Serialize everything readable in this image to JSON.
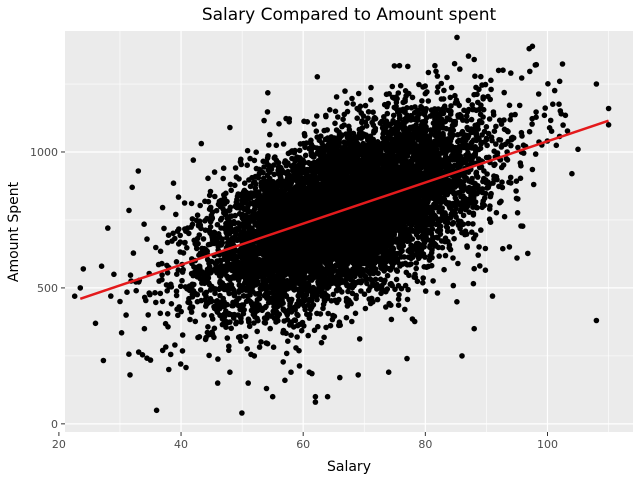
{
  "chart_data": {
    "type": "scatter",
    "title": "Salary Compared to Amount spent",
    "xlabel": "Salary",
    "ylabel": "Amount Spent",
    "xlim": [
      21,
      114
    ],
    "ylim": [
      -30,
      1445
    ],
    "x_ticks": [
      20,
      40,
      60,
      80,
      100
    ],
    "y_ticks": [
      0,
      500,
      1000
    ],
    "grid": true,
    "colors": {
      "panel": "#ebebeb",
      "grid": "#ffffff",
      "points": "#000000",
      "fit_line": "#e41a1c"
    },
    "point_cloud": {
      "center": [
        67,
        780
      ],
      "sd": [
        11,
        170
      ],
      "correlation": 0.55,
      "count": 9000
    },
    "outliers": [
      [
        23.5,
        500
      ],
      [
        24,
        570
      ],
      [
        26,
        370
      ],
      [
        27,
        580
      ],
      [
        28,
        720
      ],
      [
        29,
        550
      ],
      [
        28.5,
        470
      ],
      [
        30,
        450
      ],
      [
        32,
        870
      ],
      [
        31,
        400
      ],
      [
        33,
        930
      ],
      [
        34,
        350
      ],
      [
        36,
        50
      ],
      [
        37,
        270
      ],
      [
        38,
        200
      ],
      [
        39,
        290
      ],
      [
        42,
        970
      ],
      [
        43,
        320
      ],
      [
        46,
        150
      ],
      [
        48,
        190
      ],
      [
        48,
        1090
      ],
      [
        51,
        150
      ],
      [
        52,
        250
      ],
      [
        54,
        130
      ],
      [
        55,
        100
      ],
      [
        57,
        160
      ],
      [
        58,
        190
      ],
      [
        61,
        190
      ],
      [
        62,
        100
      ],
      [
        62,
        80
      ],
      [
        64,
        100
      ],
      [
        66,
        170
      ],
      [
        69,
        180
      ],
      [
        74,
        190
      ],
      [
        77,
        240
      ],
      [
        86,
        250
      ],
      [
        88,
        350
      ],
      [
        97,
        1380
      ],
      [
        98,
        1320
      ],
      [
        102,
        1260
      ],
      [
        104,
        920
      ],
      [
        105,
        1010
      ],
      [
        108,
        1250
      ],
      [
        108,
        380
      ],
      [
        110,
        1160
      ],
      [
        110,
        1100
      ],
      [
        91,
        470
      ],
      [
        95,
        610
      ],
      [
        88,
        1340
      ],
      [
        92,
        1300
      ],
      [
        94,
        1290
      ]
    ],
    "fit_line": {
      "x": [
        23.5,
        110
      ],
      "y": [
        460,
        1115
      ]
    }
  }
}
